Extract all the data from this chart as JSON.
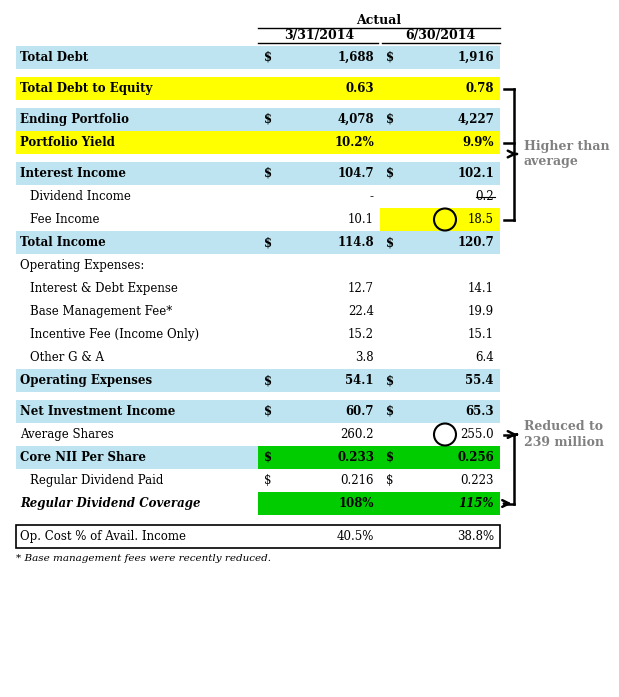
{
  "title": "Actual",
  "col1_header": "3/31/2014",
  "col2_header": "6/30/2014",
  "colors": {
    "light_blue": "#BDE4F0",
    "yellow": "#FFFF00",
    "green": "#00CC00",
    "white": "#FFFFFF",
    "dark": "#000000",
    "annotation": "#808080"
  },
  "rows": [
    {
      "label": "Total Debt",
      "bold": true,
      "italic": false,
      "indent": 0,
      "bg": "light_blue",
      "v1": "1,688",
      "v2": "1,916",
      "v1_bg": "light_blue",
      "v2_bg": "light_blue",
      "d1": true,
      "d2": true,
      "spacer_after": true
    },
    {
      "label": "Total Debt to Equity",
      "bold": true,
      "italic": false,
      "indent": 0,
      "bg": "yellow",
      "v1": "0.63",
      "v2": "0.78",
      "v1_bg": "yellow",
      "v2_bg": "yellow",
      "d1": false,
      "d2": false,
      "spacer_after": true,
      "bracket_top": true
    },
    {
      "label": "Ending Portfolio",
      "bold": true,
      "italic": false,
      "indent": 0,
      "bg": "light_blue",
      "v1": "4,078",
      "v2": "4,227",
      "v1_bg": "light_blue",
      "v2_bg": "light_blue",
      "d1": true,
      "d2": true,
      "spacer_after": false
    },
    {
      "label": "Portfolio Yield",
      "bold": true,
      "italic": false,
      "indent": 0,
      "bg": "yellow",
      "v1": "10.2%",
      "v2": "9.9%",
      "v1_bg": "yellow",
      "v2_bg": "yellow",
      "d1": false,
      "d2": false,
      "spacer_after": true,
      "bracket_bot": true
    },
    {
      "label": "Interest Income",
      "bold": true,
      "italic": false,
      "indent": 0,
      "bg": "light_blue",
      "v1": "104.7",
      "v2": "102.1",
      "v1_bg": "light_blue",
      "v2_bg": "light_blue",
      "d1": true,
      "d2": true,
      "spacer_after": false
    },
    {
      "label": "Dividend Income",
      "bold": false,
      "italic": false,
      "indent": 1,
      "bg": "white",
      "v1": "-",
      "v2": "0.2",
      "v1_bg": "white",
      "v2_bg": "white",
      "d1": false,
      "d2": false,
      "spacer_after": false,
      "strike2": true
    },
    {
      "label": "Fee Income",
      "bold": false,
      "italic": false,
      "indent": 1,
      "bg": "white",
      "v1": "10.1",
      "v2": "18.5",
      "v1_bg": "white",
      "v2_bg": "yellow",
      "d1": false,
      "d2": false,
      "spacer_after": false,
      "circle2": true,
      "fee_arrow": true
    },
    {
      "label": "Total Income",
      "bold": true,
      "italic": false,
      "indent": 0,
      "bg": "light_blue",
      "v1": "114.8",
      "v2": "120.7",
      "v1_bg": "light_blue",
      "v2_bg": "light_blue",
      "d1": true,
      "d2": true,
      "spacer_after": false
    },
    {
      "label": "Operating Expenses:",
      "bold": false,
      "italic": false,
      "indent": 0,
      "bg": "white",
      "v1": "",
      "v2": "",
      "v1_bg": "white",
      "v2_bg": "white",
      "d1": false,
      "d2": false,
      "spacer_after": false
    },
    {
      "label": "Interest & Debt Expense",
      "bold": false,
      "italic": false,
      "indent": 1,
      "bg": "white",
      "v1": "12.7",
      "v2": "14.1",
      "v1_bg": "white",
      "v2_bg": "white",
      "d1": false,
      "d2": false,
      "spacer_after": false
    },
    {
      "label": "Base Management Fee*",
      "bold": false,
      "italic": false,
      "indent": 1,
      "bg": "white",
      "v1": "22.4",
      "v2": "19.9",
      "v1_bg": "white",
      "v2_bg": "white",
      "d1": false,
      "d2": false,
      "spacer_after": false
    },
    {
      "label": "Incentive Fee (Income Only)",
      "bold": false,
      "italic": false,
      "indent": 1,
      "bg": "white",
      "v1": "15.2",
      "v2": "15.1",
      "v1_bg": "white",
      "v2_bg": "white",
      "d1": false,
      "d2": false,
      "spacer_after": false
    },
    {
      "label": "Other G & A",
      "bold": false,
      "italic": false,
      "indent": 1,
      "bg": "white",
      "v1": "3.8",
      "v2": "6.4",
      "v1_bg": "white",
      "v2_bg": "white",
      "d1": false,
      "d2": false,
      "spacer_after": false
    },
    {
      "label": "Operating Expenses",
      "bold": true,
      "italic": false,
      "indent": 0,
      "bg": "light_blue",
      "v1": "54.1",
      "v2": "55.4",
      "v1_bg": "light_blue",
      "v2_bg": "light_blue",
      "d1": true,
      "d2": true,
      "spacer_after": true
    },
    {
      "label": "Net Investment Income",
      "bold": true,
      "italic": false,
      "indent": 0,
      "bg": "light_blue",
      "v1": "60.7",
      "v2": "65.3",
      "v1_bg": "light_blue",
      "v2_bg": "light_blue",
      "d1": true,
      "d2": true,
      "spacer_after": false
    },
    {
      "label": "Average Shares",
      "bold": false,
      "italic": false,
      "indent": 0,
      "bg": "white",
      "v1": "260.2",
      "v2": "255.0",
      "v1_bg": "white",
      "v2_bg": "white",
      "d1": false,
      "d2": false,
      "spacer_after": false,
      "circle2": true,
      "avg_arrow": true
    },
    {
      "label": "Core NII Per Share",
      "bold": true,
      "italic": false,
      "indent": 0,
      "bg": "light_blue",
      "v1": "0.233",
      "v2": "0.256",
      "v1_bg": "green",
      "v2_bg": "green",
      "d1": true,
      "d2": true,
      "spacer_after": false
    },
    {
      "label": "Regular Dividend Paid",
      "bold": false,
      "italic": false,
      "indent": 1,
      "bg": "white",
      "v1": "0.216",
      "v2": "0.223",
      "v1_bg": "white",
      "v2_bg": "white",
      "d1": true,
      "d2": true,
      "spacer_after": false
    },
    {
      "label": "Regular Dividend Coverage",
      "bold": true,
      "italic": true,
      "indent": 0,
      "bg": "white",
      "v1": "108%",
      "v2": "115%",
      "v1_bg": "green",
      "v2_bg": "green",
      "d1": false,
      "d2": false,
      "spacer_after": false,
      "left_arrow": true
    }
  ],
  "footer": {
    "label": "Op. Cost % of Avail. Income",
    "v1": "40.5%",
    "v2": "38.8%"
  },
  "footnote": "* Base management fees were recently reduced.",
  "annotation1": "Higher than\naverage",
  "annotation2": "Reduced to\n239 million"
}
